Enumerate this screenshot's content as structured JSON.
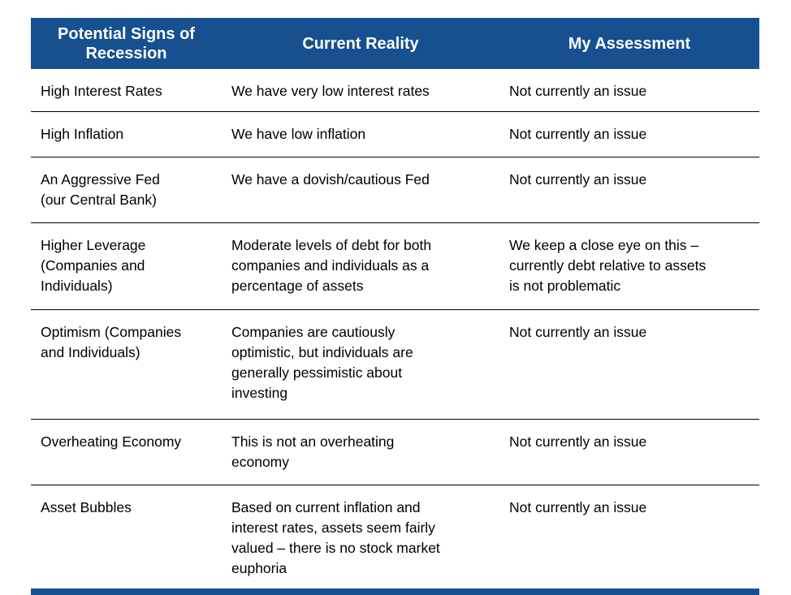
{
  "colors": {
    "header_bg": "#17508F",
    "header_text": "#FFFFFF",
    "row_divider": "#000000",
    "body_text": "#000000",
    "footer_bar": "#17508F"
  },
  "table": {
    "headers": {
      "signs": "Potential Signs of\nRecession",
      "reality": "Current Reality",
      "assessment": "My Assessment"
    },
    "rows": [
      {
        "sign": "High Interest Rates",
        "reality": "We have very low interest rates",
        "assessment": "Not currently an issue"
      },
      {
        "sign": "High Inflation",
        "reality": "We have low inflation",
        "assessment": "Not currently an issue"
      },
      {
        "sign": "An Aggressive Fed\n(our Central Bank)",
        "reality": "We have a dovish/cautious Fed",
        "assessment": "Not currently an issue"
      },
      {
        "sign": "Higher Leverage\n(Companies and\nIndividuals)",
        "reality": "Moderate levels of debt for both\ncompanies and individuals as a\npercentage of assets",
        "assessment": "We keep a close eye on this –\ncurrently debt relative to assets\nis not problematic"
      },
      {
        "sign": "Optimism (Companies\nand Individuals)",
        "reality": "Companies are cautiously\noptimistic, but individuals are\ngenerally pessimistic about\ninvesting",
        "assessment": "Not currently an issue"
      },
      {
        "sign": "Overheating Economy",
        "reality": "This is not an overheating\neconomy",
        "assessment": "Not currently an issue"
      },
      {
        "sign": "Asset Bubbles",
        "reality": "Based on current inflation and\ninterest rates, assets seem fairly\nvalued – there is no stock market\neuphoria",
        "assessment": "Not currently an issue"
      }
    ]
  }
}
